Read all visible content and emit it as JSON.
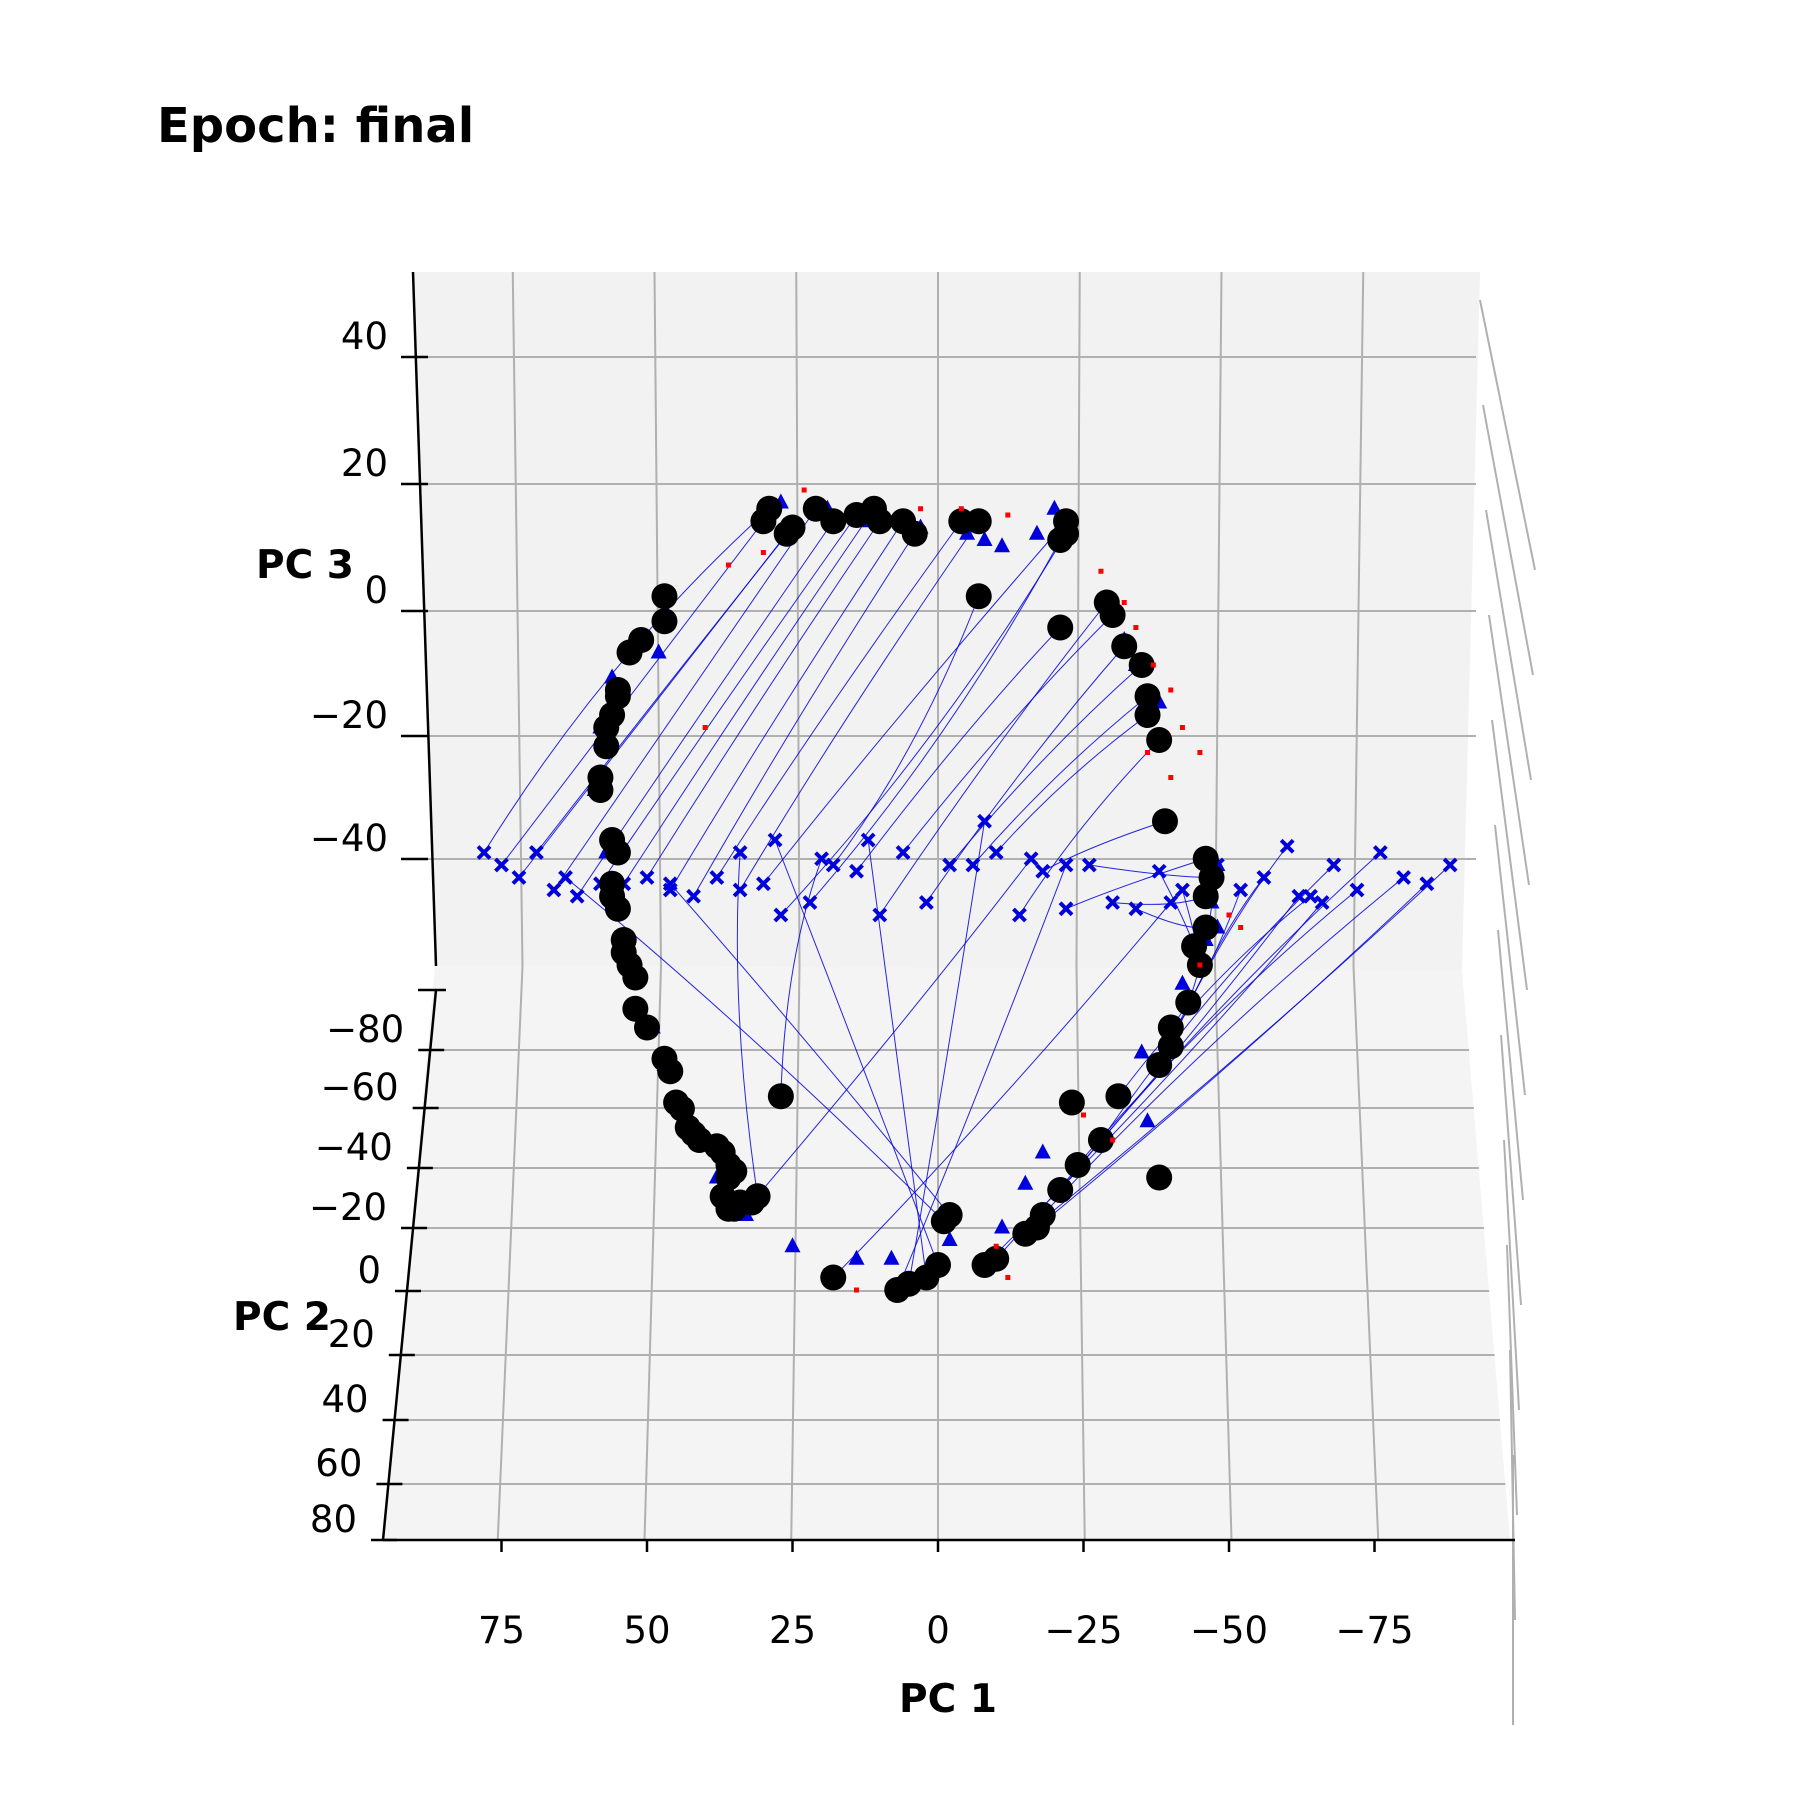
{
  "chart_data": {
    "type": "scatter",
    "projection": "3d",
    "title": "Epoch: final",
    "title_color": "#8b0000",
    "xlabel": "PC 1",
    "ylabel": "PC 2",
    "zlabel": "PC 3",
    "xlim": [
      95,
      -95
    ],
    "ylim": [
      80,
      -100
    ],
    "zlim": [
      -60,
      55
    ],
    "x_ticks": [
      75,
      50,
      25,
      0,
      -25,
      -50,
      -75
    ],
    "x_tick_labels": [
      "75",
      "50",
      "25",
      "0",
      "−25",
      "−50",
      "−75"
    ],
    "y_ticks": [
      80,
      60,
      40,
      20,
      0,
      -20,
      -40,
      -60,
      -80
    ],
    "y_tick_labels": [
      "80",
      "60",
      "40",
      "20",
      "0",
      "−20",
      "−40",
      "−60",
      "−80"
    ],
    "z_ticks": [
      40,
      20,
      0,
      -20,
      -40
    ],
    "z_tick_labels": [
      "40",
      "20",
      "0",
      "−20",
      "−40"
    ],
    "grid": true,
    "colors": {
      "trajectory": "#0000dd",
      "start_marker": "#0000dd",
      "triangle_marker": "#0000dd",
      "end_marker": "#000000",
      "red_marker": "#ff0000",
      "pane": "#f2f2f2",
      "grid": "#b0b0b0"
    },
    "series": [
      {
        "marker": "x",
        "color": "#0000dd",
        "points": [
          [
            78,
            -38
          ],
          [
            75,
            -40
          ],
          [
            72,
            -42
          ],
          [
            69,
            -38
          ],
          [
            66,
            -44
          ],
          [
            62,
            -45
          ],
          [
            58,
            -43
          ],
          [
            54,
            -43
          ],
          [
            50,
            -42
          ],
          [
            46,
            -44
          ],
          [
            42,
            -45
          ],
          [
            38,
            -42
          ],
          [
            34,
            -44
          ],
          [
            30,
            -43
          ],
          [
            27,
            -48
          ],
          [
            22,
            -46
          ],
          [
            18,
            -40
          ],
          [
            14,
            -41
          ],
          [
            10,
            -48
          ],
          [
            6,
            -38
          ],
          [
            2,
            -46
          ],
          [
            -2,
            -40
          ],
          [
            -6,
            -40
          ],
          [
            -10,
            -38
          ],
          [
            -14,
            -48
          ],
          [
            -18,
            -41
          ],
          [
            -22,
            -47
          ],
          [
            -26,
            -40
          ],
          [
            -30,
            -46
          ],
          [
            -34,
            -47
          ],
          [
            -38,
            -41
          ],
          [
            -42,
            -44
          ],
          [
            -48,
            -40
          ],
          [
            -52,
            -44
          ],
          [
            -56,
            -42
          ],
          [
            -60,
            -37
          ],
          [
            -64,
            -45
          ],
          [
            -68,
            -40
          ],
          [
            -72,
            -44
          ],
          [
            -76,
            -38
          ],
          [
            -80,
            -42
          ],
          [
            -84,
            -43
          ],
          [
            -88,
            -40
          ],
          [
            -62,
            -45
          ],
          [
            -66,
            -46
          ],
          [
            28,
            -36
          ],
          [
            12,
            -36
          ],
          [
            -8,
            -33
          ],
          [
            -22,
            -40
          ],
          [
            -40,
            -46
          ],
          [
            64,
            -42
          ],
          [
            46,
            -43
          ],
          [
            20,
            -39
          ],
          [
            34,
            -38
          ],
          [
            -16,
            -39
          ]
        ]
      },
      {
        "marker": "triangle",
        "color": "#0000dd",
        "points": [
          [
            27,
            18
          ],
          [
            19,
            17
          ],
          [
            13,
            15
          ],
          [
            3,
            14
          ],
          [
            -5,
            13
          ],
          [
            -8,
            12
          ],
          [
            -11,
            11
          ],
          [
            -17,
            13
          ],
          [
            -20,
            17
          ],
          [
            -32,
            -4
          ],
          [
            -34,
            -8
          ],
          [
            -38,
            -14
          ],
          [
            -48,
            -40
          ],
          [
            -47,
            -46
          ],
          [
            -46,
            -52
          ],
          [
            -42,
            -59
          ],
          [
            -35,
            -70
          ],
          [
            -18,
            -86
          ],
          [
            -15,
            -91
          ],
          [
            -11,
            -98
          ],
          [
            -2,
            -100
          ],
          [
            8,
            -103
          ],
          [
            14,
            -103
          ],
          [
            25,
            -101
          ],
          [
            33,
            -96
          ],
          [
            38,
            -90
          ],
          [
            41,
            -84
          ],
          [
            45,
            -78
          ],
          [
            47,
            -72
          ],
          [
            49,
            -66
          ],
          [
            52,
            -57
          ],
          [
            55,
            -47
          ],
          [
            57,
            -38
          ],
          [
            59,
            -28
          ],
          [
            58,
            -18
          ],
          [
            56,
            -10
          ],
          [
            52,
            -4
          ],
          [
            48,
            -6
          ],
          [
            -48,
            -50
          ],
          [
            -36,
            -81
          ]
        ]
      },
      {
        "marker": "circle",
        "color": "#000000",
        "points": [
          [
            29,
            17
          ],
          [
            30,
            15
          ],
          [
            26,
            13
          ],
          [
            25,
            14
          ],
          [
            21,
            17
          ],
          [
            18,
            15
          ],
          [
            14,
            16
          ],
          [
            11,
            17
          ],
          [
            10,
            15
          ],
          [
            6,
            15
          ],
          [
            4,
            13
          ],
          [
            -4,
            15
          ],
          [
            -7,
            15
          ],
          [
            -22,
            15
          ],
          [
            -22,
            13
          ],
          [
            -21,
            12
          ],
          [
            -7,
            3
          ],
          [
            -21,
            -2
          ],
          [
            -29,
            2
          ],
          [
            -30,
            0
          ],
          [
            -32,
            -5
          ],
          [
            -35,
            -8
          ],
          [
            -36,
            -13
          ],
          [
            -36,
            -16
          ],
          [
            -38,
            -20
          ],
          [
            -39,
            -33
          ],
          [
            -46,
            -39
          ],
          [
            -47,
            -42
          ],
          [
            -46,
            -45
          ],
          [
            -46,
            -50
          ],
          [
            -44,
            -53
          ],
          [
            -45,
            -56
          ],
          [
            -43,
            -62
          ],
          [
            -40,
            -66
          ],
          [
            -40,
            -69
          ],
          [
            -38,
            -72
          ],
          [
            -31,
            -77
          ],
          [
            -28,
            -84
          ],
          [
            -24,
            -88
          ],
          [
            -21,
            -92
          ],
          [
            -18,
            -96
          ],
          [
            -17,
            -98
          ],
          [
            -15,
            -99
          ],
          [
            -10,
            -103
          ],
          [
            -8,
            -104
          ],
          [
            0,
            -104
          ],
          [
            2,
            -106
          ],
          [
            5,
            -107
          ],
          [
            7,
            -108
          ],
          [
            18,
            -106
          ],
          [
            -1,
            -97
          ],
          [
            -2,
            -96
          ],
          [
            27,
            -77
          ],
          [
            31,
            -93
          ],
          [
            32,
            -94
          ],
          [
            34,
            -94
          ],
          [
            35,
            -95
          ],
          [
            36,
            -95
          ],
          [
            37,
            -93
          ],
          [
            36,
            -90
          ],
          [
            35,
            -89
          ],
          [
            36,
            -88
          ],
          [
            37,
            -86
          ],
          [
            38,
            -85
          ],
          [
            41,
            -84
          ],
          [
            42,
            -83
          ],
          [
            43,
            -82
          ],
          [
            44,
            -79
          ],
          [
            45,
            -78
          ],
          [
            46,
            -73
          ],
          [
            47,
            -71
          ],
          [
            50,
            -66
          ],
          [
            52,
            -63
          ],
          [
            52,
            -58
          ],
          [
            53,
            -56
          ],
          [
            54,
            -54
          ],
          [
            54,
            -52
          ],
          [
            55,
            -47
          ],
          [
            56,
            -45
          ],
          [
            56,
            -43
          ],
          [
            55,
            -38
          ],
          [
            56,
            -36
          ],
          [
            58,
            -28
          ],
          [
            58,
            -26
          ],
          [
            57,
            -21
          ],
          [
            57,
            -18
          ],
          [
            56,
            -16
          ],
          [
            55,
            -13
          ],
          [
            55,
            -12
          ],
          [
            53,
            -6
          ],
          [
            51,
            -4
          ],
          [
            47,
            -1
          ],
          [
            47,
            3
          ],
          [
            -23,
            -78
          ],
          [
            -38,
            -90
          ]
        ]
      },
      {
        "marker": "square_small",
        "color": "#ff0000",
        "points": [
          [
            23,
            20
          ],
          [
            3,
            17
          ],
          [
            -4,
            17
          ],
          [
            -12,
            16
          ],
          [
            -28,
            7
          ],
          [
            -32,
            2
          ],
          [
            -34,
            -2
          ],
          [
            -37,
            -8
          ],
          [
            -40,
            -12
          ],
          [
            -42,
            -18
          ],
          [
            -45,
            -22
          ],
          [
            -50,
            -48
          ],
          [
            -52,
            -50
          ],
          [
            -25,
            -80
          ],
          [
            -30,
            -84
          ],
          [
            -12,
            -106
          ],
          [
            14,
            -108
          ],
          [
            -10,
            -101
          ],
          [
            40,
            -18
          ],
          [
            36,
            8
          ],
          [
            30,
            10
          ],
          [
            -36,
            -22
          ],
          [
            -40,
            -26
          ],
          [
            -45,
            -56
          ]
        ]
      }
    ]
  }
}
